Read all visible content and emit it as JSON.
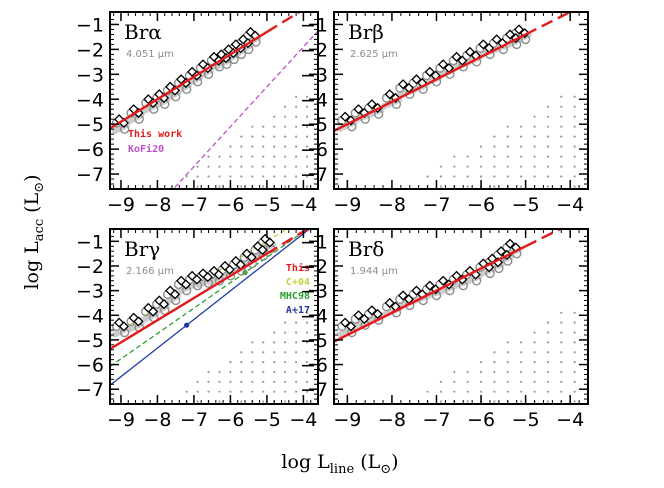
{
  "chart_data": {
    "type": "scatter",
    "xlabel": "log L",
    "xlabel_sub": "line",
    "xlabel_unit": "(L",
    "ylabel": "log L",
    "ylabel_sub": "acc",
    "ylabel_unit": "(L",
    "unit_symbol": "⊙",
    "unit_close": ")",
    "xlim": [
      -9.3,
      -3.6
    ],
    "ylim": [
      -7.6,
      -0.5
    ],
    "xticks": [
      -9,
      -8,
      -7,
      -6,
      -5,
      -4
    ],
    "yticks": [
      -1,
      -2,
      -3,
      -4,
      -5,
      -6,
      -7
    ],
    "colors": {
      "this_work": "#e31a1c",
      "kofi20": "#c050c8",
      "c04": "#c8d040",
      "mhc98": "#2ca02c",
      "a17": "#1f3aa6",
      "grey_points": "#8c8c8c",
      "light_grey": "#cccccc",
      "grid_dots": "#999999"
    },
    "panels": [
      {
        "name": "Brα",
        "greek": "α",
        "wavelength": "4.051",
        "unit": "μm",
        "fit": {
          "slope": 0.9,
          "intercept": 3.2
        },
        "legend": [
          "This work",
          "KoFi20"
        ],
        "lit_lines": [
          {
            "name": "KoFi20",
            "color": "#c050c8",
            "slope": 1.6,
            "intercept": 4.5
          }
        ],
        "data_x": [
          -9.0,
          -8.6,
          -8.2,
          -7.9,
          -7.6,
          -7.3,
          -7.0,
          -6.7,
          -6.4,
          -6.2,
          -6.0,
          -5.8,
          -5.6,
          -5.4
        ],
        "data_y": [
          -4.9,
          -4.5,
          -4.1,
          -3.9,
          -3.6,
          -3.3,
          -3.0,
          -2.7,
          -2.4,
          -2.3,
          -2.1,
          -1.9,
          -1.7,
          -1.4
        ]
      },
      {
        "name": "Brβ",
        "greek": "β",
        "wavelength": "2.625",
        "unit": "μm",
        "fit": {
          "slope": 0.9,
          "intercept": 3.1
        },
        "legend": [],
        "lit_lines": [],
        "data_x": [
          -9.0,
          -8.7,
          -8.4,
          -8.0,
          -7.7,
          -7.4,
          -7.1,
          -6.8,
          -6.5,
          -6.2,
          -5.9,
          -5.6,
          -5.3,
          -5.1
        ],
        "data_y": [
          -4.8,
          -4.5,
          -4.3,
          -3.9,
          -3.5,
          -3.3,
          -3.0,
          -2.7,
          -2.4,
          -2.2,
          -1.9,
          -1.7,
          -1.5,
          -1.3
        ]
      },
      {
        "name": "Brγ",
        "greek": "γ",
        "wavelength": "2.166",
        "unit": "μm",
        "fit": {
          "slope": 0.9,
          "intercept": 3.0
        },
        "legend": [
          "This",
          "C+04",
          "MHC98",
          "A+17"
        ],
        "lit_lines": [
          {
            "name": "C+04",
            "color": "#c8d040",
            "slope": 0.9,
            "intercept": 3.5
          },
          {
            "name": "MHC98",
            "color": "#2ca02c",
            "slope": 1.03,
            "intercept": 3.5
          },
          {
            "name": "A+17",
            "color": "#1f3aa6",
            "slope": 1.16,
            "intercept": 3.95
          }
        ],
        "data_x": [
          -9.0,
          -8.6,
          -8.2,
          -7.9,
          -7.6,
          -7.3,
          -7.0,
          -6.7,
          -6.4,
          -6.1,
          -5.8,
          -5.5,
          -5.2,
          -5.0
        ],
        "data_y": [
          -4.4,
          -4.2,
          -3.8,
          -3.5,
          -3.1,
          -2.7,
          -2.5,
          -2.4,
          -2.3,
          -2.1,
          -1.9,
          -1.6,
          -1.3,
          -1.0
        ]
      },
      {
        "name": "Brδ",
        "greek": "δ",
        "wavelength": "1.944",
        "unit": "μm",
        "fit": {
          "slope": 0.9,
          "intercept": 3.3
        },
        "legend": [],
        "lit_lines": [],
        "data_x": [
          -9.0,
          -8.7,
          -8.4,
          -8.0,
          -7.7,
          -7.4,
          -7.1,
          -6.8,
          -6.5,
          -6.2,
          -5.9,
          -5.7,
          -5.5,
          -5.3
        ],
        "data_y": [
          -4.4,
          -4.1,
          -3.9,
          -3.6,
          -3.3,
          -3.1,
          -2.9,
          -2.7,
          -2.5,
          -2.3,
          -2.0,
          -1.8,
          -1.5,
          -1.2
        ]
      }
    ]
  }
}
